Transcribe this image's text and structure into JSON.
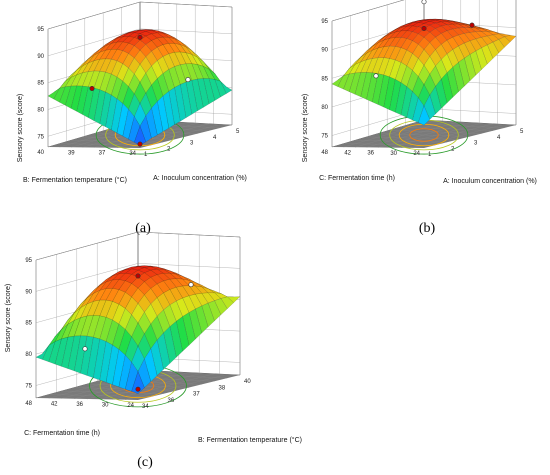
{
  "chart_data": [
    {
      "type": "surface3d",
      "panel_label": "(a)",
      "zlabel": "Sensory score (score)",
      "xlabel": "A: Inoculum concentration (%)",
      "ylabel": "B: Fermentation temperature (°C)",
      "x_ticks": [
        "1",
        "2",
        "3",
        "4",
        "5"
      ],
      "y_ticks": [
        "34",
        "37",
        "39",
        "40"
      ],
      "z_ticks": [
        "75",
        "80",
        "85",
        "90",
        "95"
      ],
      "zlim": [
        73,
        95
      ],
      "corners_z": {
        "left": 82.5,
        "back": 88.5,
        "right": 79.5,
        "front": 73.5
      },
      "peak": 92.5,
      "center_point": 91.2,
      "floor_point": 73.5
    },
    {
      "type": "surface3d",
      "panel_label": "(b)",
      "zlabel": "Sensory score (score)",
      "xlabel": "A: Inoculum concentration (%)",
      "ylabel": "C: Fermentation time  (h)",
      "x_ticks": [
        "1",
        "2",
        "3",
        "4",
        "5"
      ],
      "y_ticks": [
        "24",
        "30",
        "36",
        "42",
        "48"
      ],
      "z_ticks": [
        "75",
        "80",
        "85",
        "90",
        "95"
      ],
      "zlim": [
        73,
        95
      ],
      "corners_z": {
        "left": 84,
        "back": 90.5,
        "right": 88.5,
        "front": 77
      },
      "peak": 93,
      "center_point": 91.6,
      "design_point": 95
    },
    {
      "type": "surface3d",
      "panel_label": "(c)",
      "zlabel": "Sensory score (score)",
      "xlabel": "B: Fermentation temperature (°C)",
      "ylabel": "C: Fermentation time  (h)",
      "x_ticks": [
        "34",
        "36",
        "37",
        "38",
        "40"
      ],
      "y_ticks": [
        "24",
        "30",
        "36",
        "42",
        "48"
      ],
      "z_ticks": [
        "75",
        "80",
        "85",
        "90",
        "95"
      ],
      "zlim": [
        73,
        95
      ],
      "corners_z": {
        "left": 79.5,
        "back": 84,
        "right": 85.5,
        "front": 74
      },
      "peak": 92,
      "center_point": 90.5,
      "floor_point": 74.5
    }
  ]
}
